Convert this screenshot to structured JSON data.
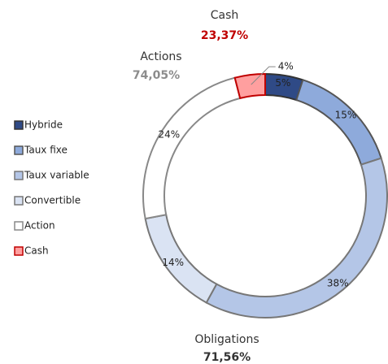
{
  "chart_data": {
    "type": "donut",
    "categories": [
      "Hybride",
      "Taux fixe",
      "Taux variable",
      "Convertible",
      "Action",
      "Cash"
    ],
    "values": [
      5,
      15,
      38,
      14,
      24,
      4
    ],
    "value_labels": [
      "5%",
      "15%",
      "38%",
      "14%",
      "24%",
      "4%"
    ],
    "colors": [
      "#2f4a86",
      "#8eaadb",
      "#b4c6e7",
      "#dae3f3",
      "#ffffff",
      "#ff9f9f"
    ],
    "edge_colors": [
      "#333333",
      "#555555",
      "#777777",
      "#777777",
      "#888888",
      "#c00000"
    ],
    "annotations": [
      {
        "label": "Cash",
        "value_label": "23,37%",
        "color": "#c00000"
      },
      {
        "label": "Actions",
        "value_label": "74,05%",
        "color": "#8c8c8c"
      },
      {
        "label": "Obligations",
        "value_label": "71,56%",
        "color": "#333333"
      }
    ],
    "legend": "left"
  }
}
